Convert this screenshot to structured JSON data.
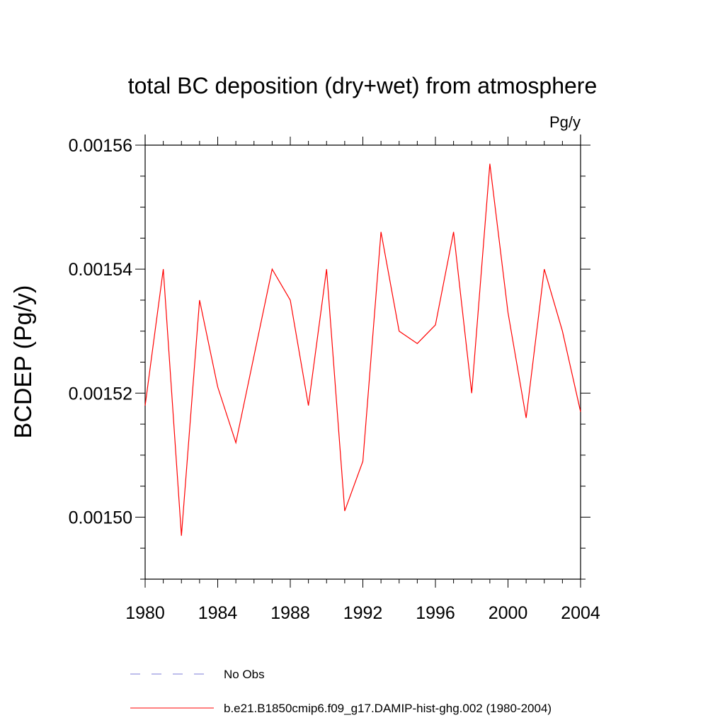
{
  "chart_data": {
    "type": "line",
    "title": "total BC deposition (dry+wet) from atmosphere",
    "units": "Pg/y",
    "ylabel": "BCDEP  (Pg/y)",
    "xlabel": "",
    "xlim": [
      1980,
      2004
    ],
    "ylim": [
      0.00149,
      0.00156
    ],
    "x_ticks": [
      "1980",
      "1984",
      "1988",
      "1992",
      "1996",
      "2000",
      "2004"
    ],
    "y_ticks": [
      "0.00150",
      "0.00152",
      "0.00154",
      "0.00156"
    ],
    "grid": false,
    "legend_position": "bottom",
    "series": [
      {
        "name": "No Obs",
        "color": "#7b7bd8",
        "dash": "dashed",
        "x": [],
        "y": []
      },
      {
        "name": "b.e21.B1850cmip6.f09_g17.DAMIP-hist-ghg.002 (1980-2004)",
        "color": "#ff0000",
        "dash": "solid",
        "x": [
          1980,
          1981,
          1982,
          1983,
          1984,
          1985,
          1986,
          1987,
          1988,
          1989,
          1990,
          1991,
          1992,
          1993,
          1994,
          1995,
          1996,
          1997,
          1998,
          1999,
          2000,
          2001,
          2002,
          2003,
          2004
        ],
        "y": [
          0.001518,
          0.00154,
          0.001497,
          0.001535,
          0.001521,
          0.001512,
          0.001526,
          0.00154,
          0.001535,
          0.001518,
          0.00154,
          0.001501,
          0.001509,
          0.001546,
          0.00153,
          0.001528,
          0.001531,
          0.001546,
          0.00152,
          0.001557,
          0.001533,
          0.001516,
          0.00154,
          0.00153,
          0.001517
        ]
      }
    ]
  }
}
